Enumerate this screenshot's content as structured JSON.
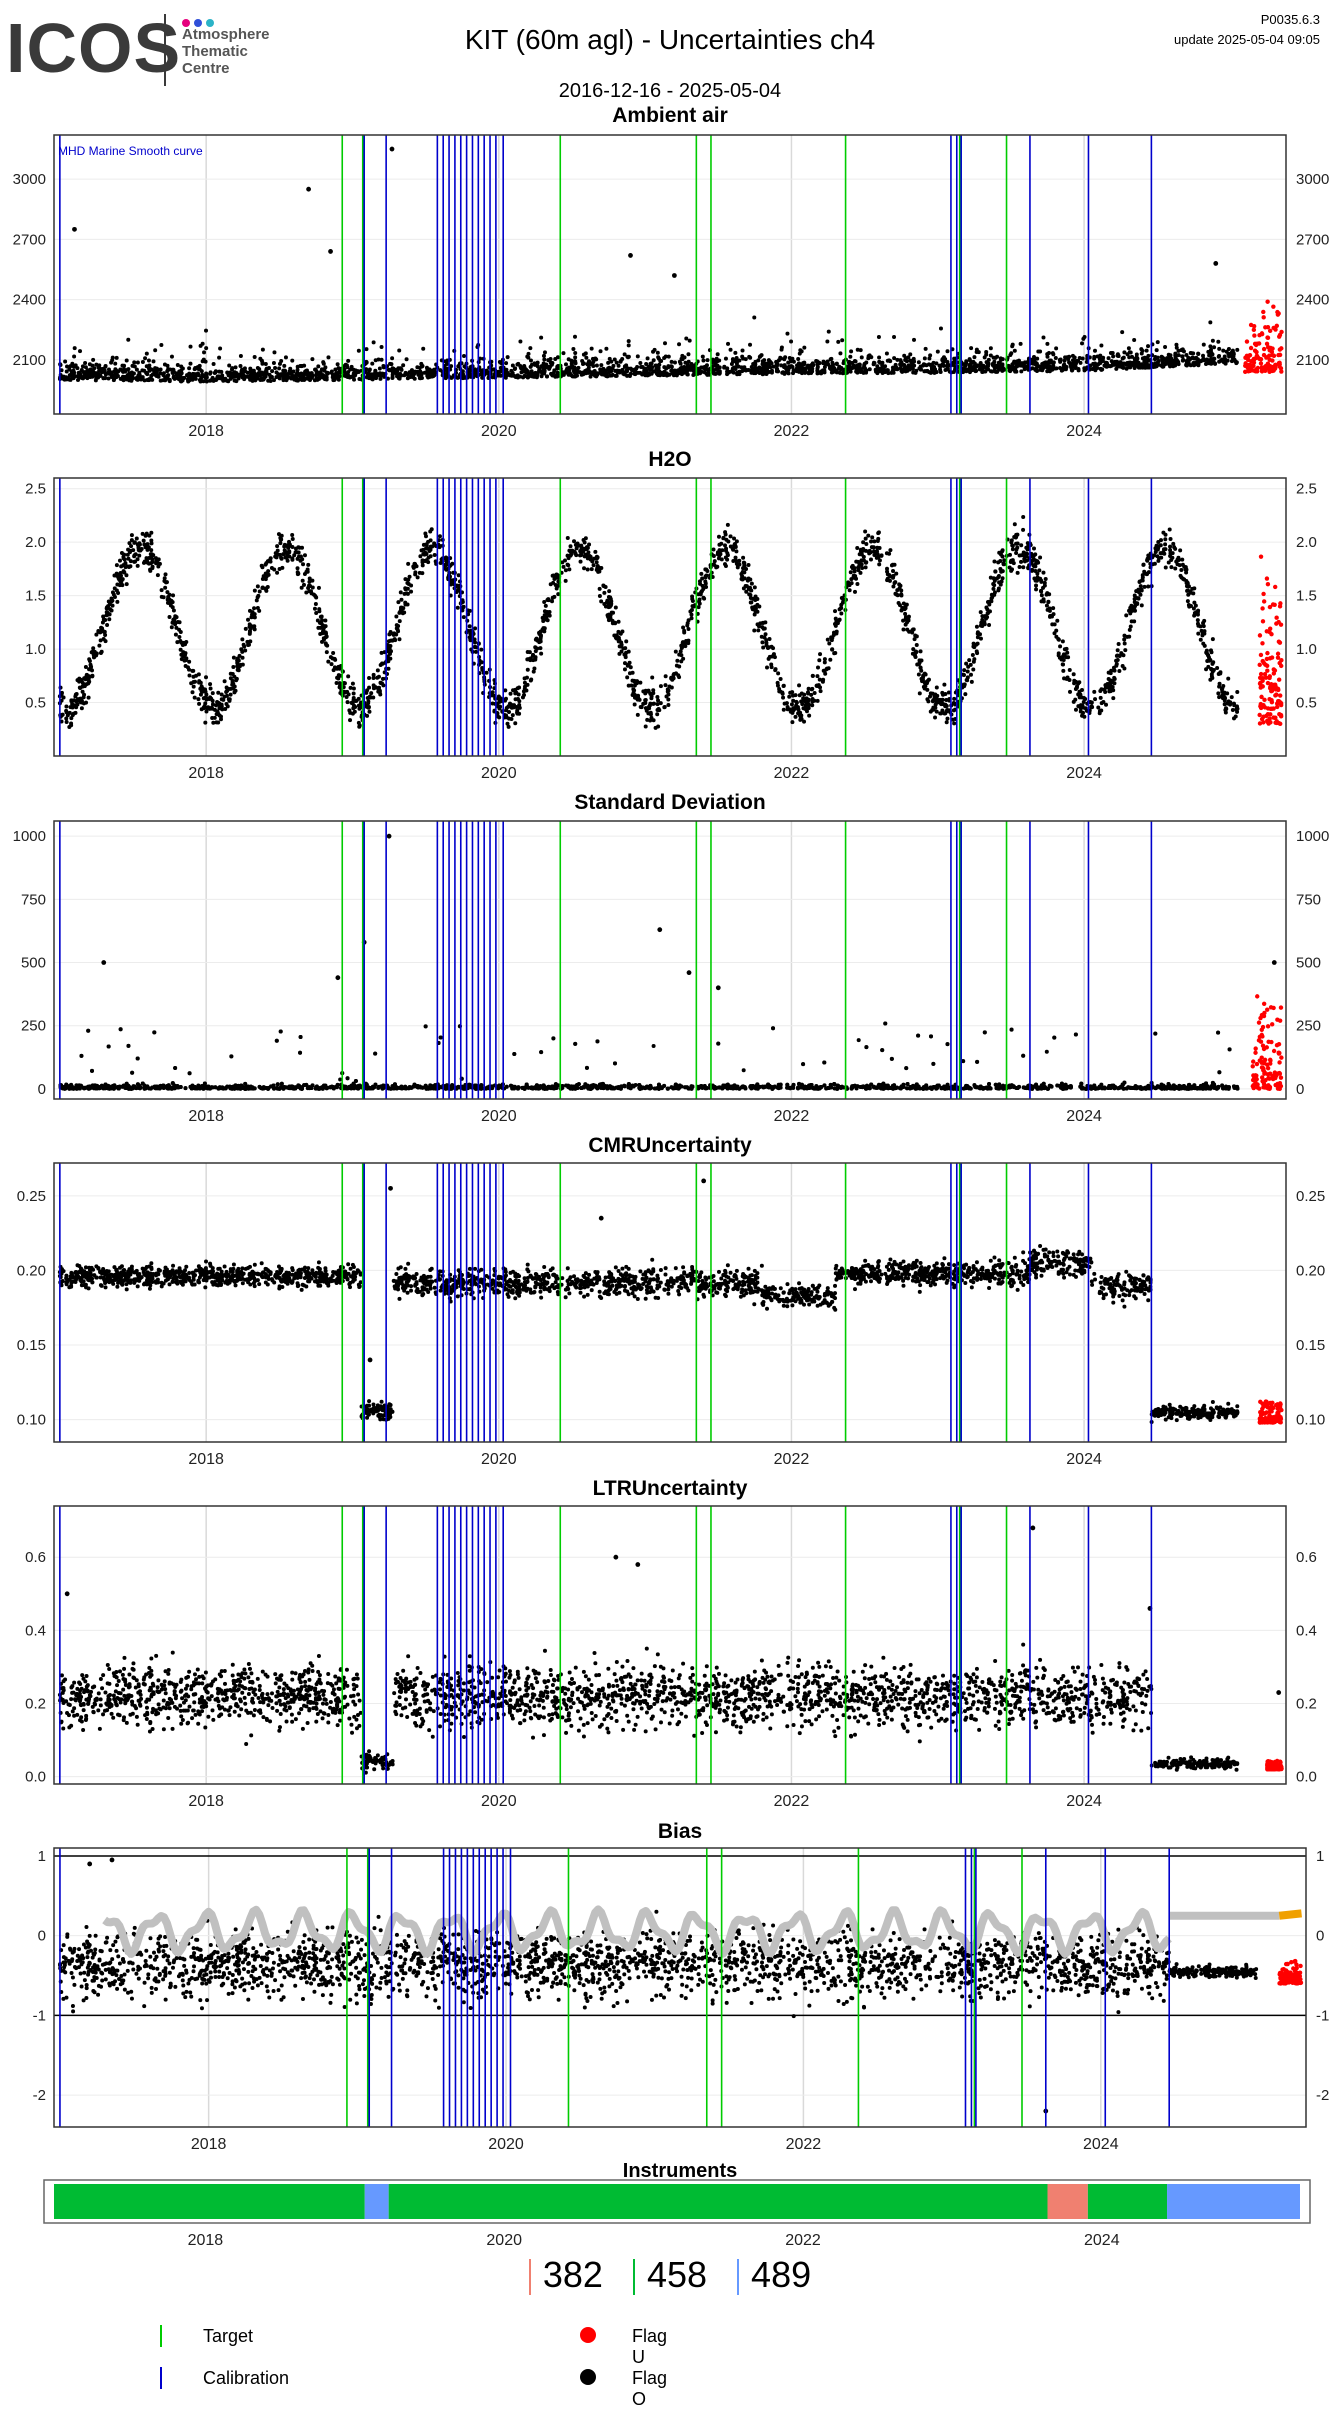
{
  "header": {
    "logo_text": "ICOS",
    "logo_sub": [
      "Atmosphere",
      "Thematic",
      "Centre"
    ],
    "logo_dot_colors": [
      "#e6007e",
      "#2f4fd8",
      "#2bb3c7"
    ],
    "title": "KIT  (60m agl) - Uncertainties ch4",
    "date_range": "2016-12-16 - 2025-05-04",
    "version": "P0035.6.3",
    "update": "update  2025-05-04 09:05"
  },
  "colors": {
    "data": "#000000",
    "flag_u": "#ff0000",
    "target_line": "#00cc00",
    "calibration_line": "#0000cc",
    "smooth_curve": "#c0c0c0",
    "smooth_recent": "#f0a000",
    "grid": "#d9d9d9"
  },
  "events": {
    "target": [
      2018.93,
      2019.07,
      2020.42,
      2021.35,
      2021.45,
      2022.37,
      2023.15,
      2023.47
    ],
    "calibration": [
      2017.0,
      2019.08,
      2019.23,
      2019.58,
      2019.62,
      2019.66,
      2019.7,
      2019.74,
      2019.78,
      2019.82,
      2019.86,
      2019.9,
      2019.94,
      2019.98,
      2020.03,
      2023.09,
      2023.13,
      2023.63,
      2024.03,
      2024.46,
      2023.16
    ]
  },
  "chart_data": [
    {
      "type": "scatter",
      "title": "Ambient air",
      "annotation": "MHD Marine Smooth curve",
      "xlim": [
        2016.96,
        2025.38
      ],
      "xticks": [
        "2018",
        "2020",
        "2022",
        "2024"
      ],
      "ylim": [
        1830,
        3220
      ],
      "yticks": [
        2100,
        2400,
        2700,
        3000
      ],
      "ytick_labels": [
        "2100",
        "2400",
        "2700",
        "3000"
      ],
      "base_by_year": [
        [
          2017,
          2040
        ],
        [
          2018,
          2030
        ],
        [
          2019,
          2040
        ],
        [
          2020,
          2050
        ],
        [
          2021,
          2060
        ],
        [
          2022,
          2070
        ],
        [
          2023,
          2075
        ],
        [
          2024,
          2085
        ],
        [
          2025,
          2120
        ]
      ],
      "spread": 70,
      "outliers": [
        [
          2017.1,
          2750
        ],
        [
          2018.7,
          2950
        ],
        [
          2018.85,
          2640
        ],
        [
          2019.27,
          3150
        ],
        [
          2020.9,
          2620
        ],
        [
          2021.2,
          2520
        ],
        [
          2024.9,
          2580
        ]
      ],
      "recent_red": [
        2025.1,
        2025.35,
        2040,
        2420
      ]
    },
    {
      "type": "scatter",
      "title": "H2O",
      "xlim": [
        2016.96,
        2025.38
      ],
      "xticks": [
        "2018",
        "2020",
        "2022",
        "2024"
      ],
      "ylim": [
        0.0,
        2.6
      ],
      "yticks": [
        0.5,
        1.0,
        1.5,
        2.0,
        2.5
      ],
      "ytick_labels": [
        "0.5",
        "1.0",
        "1.5",
        "2.0",
        "2.5"
      ],
      "seasonal": {
        "mean": 1.2,
        "amp": 0.75,
        "peak_phase": 0.55,
        "noise": 0.3
      },
      "recent_red": [
        2025.2,
        2025.35,
        0.3,
        1.9
      ]
    },
    {
      "type": "scatter",
      "title": "Standard Deviation",
      "xlim": [
        2016.96,
        2025.38
      ],
      "xticks": [
        "2018",
        "2020",
        "2022",
        "2024"
      ],
      "ylim": [
        -40,
        1060
      ],
      "yticks": [
        0,
        250,
        500,
        750,
        1000
      ],
      "ytick_labels": [
        "0",
        "250",
        "500",
        "750",
        "1000"
      ],
      "outliers": [
        [
          2017.3,
          500
        ],
        [
          2018.9,
          440
        ],
        [
          2019.08,
          580
        ],
        [
          2019.25,
          1000
        ],
        [
          2021.1,
          630
        ],
        [
          2021.3,
          460
        ],
        [
          2021.5,
          400
        ],
        [
          2025.3,
          500
        ]
      ],
      "recent_red": [
        2025.15,
        2025.35,
        0,
        420
      ]
    },
    {
      "type": "scatter",
      "title": "CMRUncertainty",
      "xlim": [
        2016.96,
        2025.38
      ],
      "xticks": [
        "2018",
        "2020",
        "2022",
        "2024"
      ],
      "ylim": [
        0.085,
        0.272
      ],
      "yticks": [
        0.1,
        0.15,
        0.2,
        0.25
      ],
      "ytick_labels": [
        "0.10",
        "0.15",
        "0.20",
        "0.25"
      ],
      "segments": [
        [
          2017.0,
          2019.06,
          0.196,
          0.006
        ],
        [
          2019.06,
          2019.28,
          0.105,
          0.005
        ],
        [
          2019.28,
          2021.8,
          0.192,
          0.008
        ],
        [
          2021.8,
          2022.3,
          0.183,
          0.006
        ],
        [
          2022.3,
          2023.63,
          0.198,
          0.007
        ],
        [
          2023.63,
          2024.05,
          0.205,
          0.008
        ],
        [
          2024.05,
          2024.46,
          0.19,
          0.008
        ],
        [
          2024.46,
          2025.35,
          0.105,
          0.004
        ]
      ],
      "outliers": [
        [
          2019.26,
          0.255
        ],
        [
          2021.4,
          0.26
        ],
        [
          2020.7,
          0.235
        ],
        [
          2019.12,
          0.14
        ]
      ],
      "recent_red": [
        2025.2,
        2025.35,
        0.098,
        0.115
      ]
    },
    {
      "type": "scatter",
      "title": "LTRUncertainty",
      "xlim": [
        2016.96,
        2025.38
      ],
      "xticks": [
        "2018",
        "2020",
        "2022",
        "2024"
      ],
      "ylim": [
        -0.02,
        0.74
      ],
      "yticks": [
        0.0,
        0.2,
        0.4,
        0.6
      ],
      "ytick_labels": [
        "0.0",
        "0.2",
        "0.4",
        "0.6"
      ],
      "segments": [
        [
          2017.0,
          2019.06,
          0.22,
          0.07
        ],
        [
          2019.06,
          2019.28,
          0.04,
          0.02
        ],
        [
          2019.28,
          2024.46,
          0.22,
          0.07
        ],
        [
          2024.46,
          2025.35,
          0.035,
          0.012
        ]
      ],
      "outliers": [
        [
          2017.05,
          0.5
        ],
        [
          2020.8,
          0.6
        ],
        [
          2020.95,
          0.58
        ],
        [
          2023.65,
          0.68
        ],
        [
          2024.45,
          0.46
        ],
        [
          2025.33,
          0.23
        ]
      ],
      "recent_red": [
        2025.25,
        2025.35,
        0.02,
        0.05
      ]
    },
    {
      "type": "scatter",
      "title": "Bias",
      "xlim": [
        2016.96,
        2025.38
      ],
      "xticks": [
        "2018",
        "2020",
        "2022",
        "2024"
      ],
      "ylim": [
        -2.4,
        1.1
      ],
      "yticks": [
        -2,
        -1,
        0,
        1
      ],
      "ytick_labels": [
        "-2",
        "-1",
        "0",
        "1"
      ],
      "hlines": [
        1,
        -1
      ],
      "segments": [
        [
          2017.0,
          2024.46,
          -0.35,
          0.35
        ],
        [
          2024.46,
          2025.35,
          -0.45,
          0.06
        ]
      ],
      "outliers": [
        [
          2023.63,
          -2.2
        ],
        [
          2017.2,
          0.9
        ],
        [
          2017.35,
          0.95
        ]
      ],
      "smooth": {
        "mean": 0.05,
        "amp": 0.2,
        "end": 2024.46,
        "after": 0.25
      },
      "recent_red": [
        2025.2,
        2025.35,
        -0.6,
        -0.3
      ]
    }
  ],
  "instruments": {
    "title": "Instruments",
    "xticks": [
      "2018",
      "2020",
      "2022",
      "2024"
    ],
    "segments": [
      {
        "from": 2017.0,
        "to": 2019.08,
        "color": "#00bb33"
      },
      {
        "from": 2019.08,
        "to": 2019.24,
        "color": "#6699ff"
      },
      {
        "from": 2019.24,
        "to": 2023.65,
        "color": "#00bb33"
      },
      {
        "from": 2023.65,
        "to": 2023.92,
        "color": "#f08070"
      },
      {
        "from": 2023.92,
        "to": 2024.45,
        "color": "#00bb33"
      },
      {
        "from": 2024.45,
        "to": 2025.34,
        "color": "#6699ff"
      }
    ],
    "counts": [
      {
        "label": "382",
        "color": "#f08070"
      },
      {
        "label": "458",
        "color": "#00bb33"
      },
      {
        "label": "489",
        "color": "#6699ff"
      }
    ]
  },
  "legend": [
    {
      "label": "Target",
      "kind": "line",
      "color": "#00cc00"
    },
    {
      "label": "Calibration",
      "kind": "line",
      "color": "#0000cc"
    },
    {
      "label": "Flag U",
      "kind": "dot",
      "color": "#ff0000"
    },
    {
      "label": "Flag O",
      "kind": "dot",
      "color": "#000000"
    }
  ]
}
